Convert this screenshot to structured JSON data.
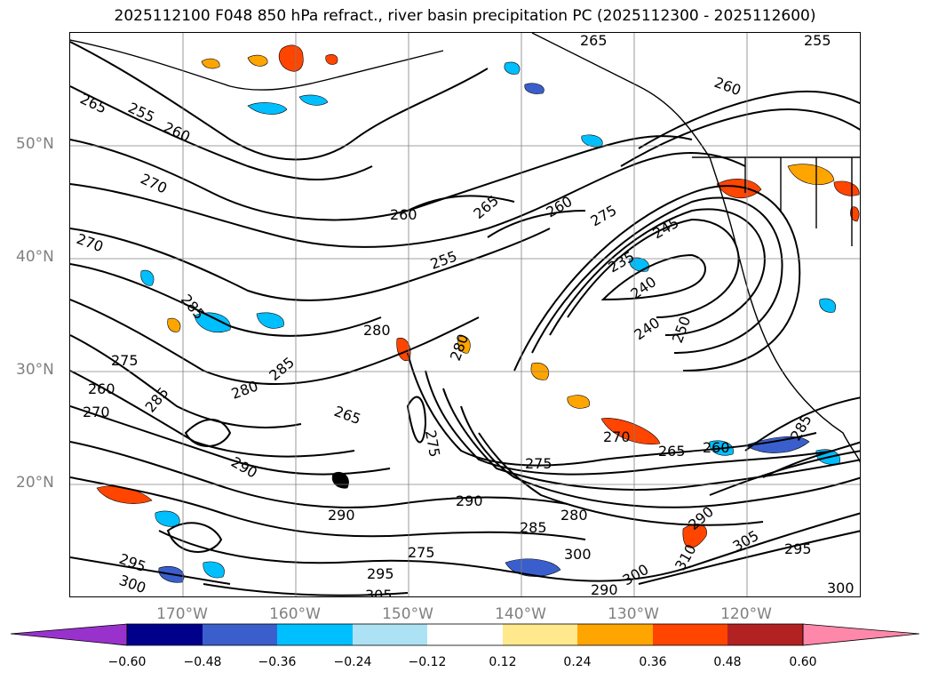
{
  "title": "2025112100 F048 850 hPa refract., river basin precipitation PC (2025112300 - 2025112600)",
  "map": {
    "lat_labels": [
      "50°N",
      "40°N",
      "30°N",
      "20°N"
    ],
    "lon_labels": [
      "170°W",
      "160°W",
      "150°W",
      "140°W",
      "130°W",
      "120°W"
    ],
    "grid": true,
    "contour_color": "#000000",
    "contour_labels": [
      "265",
      "255",
      "260",
      "270",
      "260",
      "265",
      "260",
      "275",
      "255",
      "245",
      "235",
      "240",
      "240",
      "250",
      "280",
      "280",
      "285",
      "285",
      "275",
      "270",
      "270",
      "260",
      "265",
      "275",
      "290",
      "280",
      "285",
      "290",
      "300",
      "305",
      "295",
      "275",
      "295",
      "300",
      "290",
      "300",
      "290",
      "305",
      "310",
      "295",
      "300",
      "255",
      "265",
      "260",
      "285",
      "290",
      "260",
      "270",
      "275",
      "280",
      "285",
      "265"
    ]
  },
  "colorbar": {
    "ticks": [
      "−0.60",
      "−0.48",
      "−0.36",
      "−0.24",
      "−0.12",
      "0.12",
      "0.24",
      "0.36",
      "0.48",
      "0.60"
    ],
    "colors": [
      "#9932CC",
      "#00008B",
      "#3A5FCD",
      "#00BFFF",
      "#ADE2F5",
      "#FFFFFF",
      "#FFE98C",
      "#FFA500",
      "#FF4500",
      "#B22222",
      "#FF88AA"
    ]
  }
}
